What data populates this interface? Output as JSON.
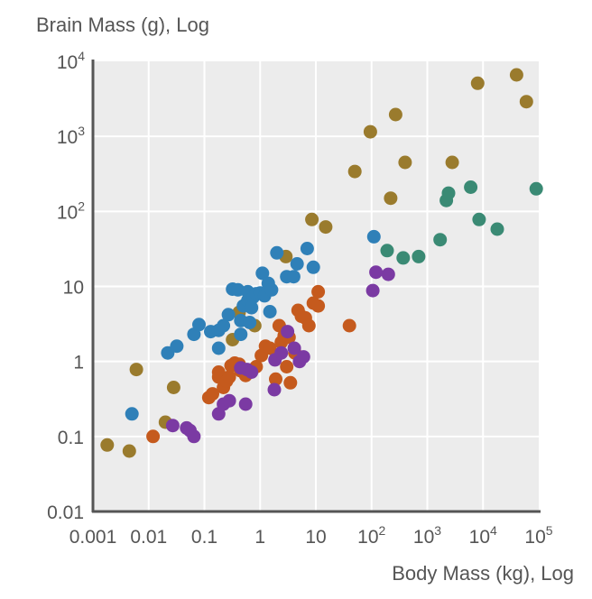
{
  "chart_data": {
    "type": "scatter",
    "title": "",
    "xlabel": "Body Mass (kg), Log",
    "ylabel": "Brain Mass (g), Log",
    "xscale": "log",
    "yscale": "log",
    "xlim": [
      0.001,
      100000
    ],
    "ylim": [
      0.01,
      10000
    ],
    "grid": true,
    "legend": "none",
    "x_ticks": [
      {
        "value": 0.001,
        "base": "0.001",
        "exp": ""
      },
      {
        "value": 0.01,
        "base": "0.01",
        "exp": ""
      },
      {
        "value": 0.1,
        "base": "0.1",
        "exp": ""
      },
      {
        "value": 1,
        "base": "1",
        "exp": ""
      },
      {
        "value": 10,
        "base": "10",
        "exp": ""
      },
      {
        "value": 100,
        "base": "10",
        "exp": "2"
      },
      {
        "value": 1000,
        "base": "10",
        "exp": "3"
      },
      {
        "value": 10000,
        "base": "10",
        "exp": "4"
      },
      {
        "value": 100000,
        "base": "10",
        "exp": "5"
      }
    ],
    "y_ticks": [
      {
        "value": 0.01,
        "base": "0.01",
        "exp": ""
      },
      {
        "value": 0.1,
        "base": "0.1",
        "exp": ""
      },
      {
        "value": 1,
        "base": "1",
        "exp": ""
      },
      {
        "value": 10,
        "base": "10",
        "exp": ""
      },
      {
        "value": 100,
        "base": "10",
        "exp": "2"
      },
      {
        "value": 1000,
        "base": "10",
        "exp": "3"
      },
      {
        "value": 10000,
        "base": "10",
        "exp": "4"
      }
    ],
    "series": [
      {
        "color": "#9a7b2d",
        "points": [
          [
            0.0018,
            0.077
          ],
          [
            0.0045,
            0.064
          ],
          [
            0.006,
            0.78
          ],
          [
            0.02,
            0.155
          ],
          [
            0.028,
            0.45
          ],
          [
            0.42,
            4.5
          ],
          [
            0.32,
            1.95
          ],
          [
            0.8,
            3.0
          ],
          [
            2.9,
            25
          ],
          [
            8.5,
            78
          ],
          [
            15,
            62
          ],
          [
            50,
            340
          ],
          [
            95,
            1150
          ],
          [
            220,
            150
          ],
          [
            270,
            1950
          ],
          [
            400,
            450
          ],
          [
            2800,
            450
          ],
          [
            8000,
            5100
          ],
          [
            40000,
            6600
          ],
          [
            60000,
            2900
          ]
        ]
      },
      {
        "color": "#2f80b8",
        "points": [
          [
            0.005,
            0.2
          ],
          [
            0.022,
            1.3
          ],
          [
            0.032,
            1.6
          ],
          [
            0.065,
            2.3
          ],
          [
            0.08,
            3.1
          ],
          [
            0.13,
            2.5
          ],
          [
            0.18,
            1.5
          ],
          [
            0.18,
            2.6
          ],
          [
            0.22,
            3.0
          ],
          [
            0.27,
            4.2
          ],
          [
            0.32,
            9.2
          ],
          [
            0.4,
            9.0
          ],
          [
            0.45,
            3.5
          ],
          [
            0.5,
            5.5
          ],
          [
            0.6,
            8.5
          ],
          [
            0.45,
            2.3
          ],
          [
            0.6,
            6.5
          ],
          [
            0.65,
            3.3
          ],
          [
            0.7,
            5.2
          ],
          [
            0.75,
            7.2
          ],
          [
            0.85,
            8.0
          ],
          [
            1.0,
            8.2
          ],
          [
            1.1,
            15
          ],
          [
            1.2,
            7.5
          ],
          [
            1.4,
            11
          ],
          [
            1.5,
            4.6
          ],
          [
            1.6,
            9.0
          ],
          [
            2.0,
            28
          ],
          [
            3.0,
            13.5
          ],
          [
            4.0,
            13.5
          ],
          [
            4.6,
            20
          ],
          [
            7.0,
            32
          ],
          [
            9.0,
            18
          ],
          [
            110,
            46
          ]
        ]
      },
      {
        "color": "#c55a1d",
        "points": [
          [
            0.012,
            0.1
          ],
          [
            0.12,
            0.33
          ],
          [
            0.14,
            0.37
          ],
          [
            0.18,
            0.62
          ],
          [
            0.18,
            0.72
          ],
          [
            0.22,
            0.45
          ],
          [
            0.25,
            0.55
          ],
          [
            0.28,
            0.62
          ],
          [
            0.3,
            0.88
          ],
          [
            0.35,
            0.95
          ],
          [
            0.42,
            0.92
          ],
          [
            0.45,
            0.75
          ],
          [
            0.55,
            0.65
          ],
          [
            0.85,
            0.85
          ],
          [
            1.05,
            1.2
          ],
          [
            1.25,
            1.6
          ],
          [
            1.5,
            1.5
          ],
          [
            1.9,
            0.58
          ],
          [
            2.0,
            1.2
          ],
          [
            2.2,
            3.0
          ],
          [
            2.4,
            1.8
          ],
          [
            2.7,
            2.2
          ],
          [
            3.0,
            0.85
          ],
          [
            3.3,
            2.1
          ],
          [
            3.5,
            0.52
          ],
          [
            4.2,
            1.3
          ],
          [
            4.8,
            4.8
          ],
          [
            5.5,
            4.0
          ],
          [
            6.5,
            3.8
          ],
          [
            7.5,
            3.0
          ],
          [
            9.0,
            6.0
          ],
          [
            11,
            5.5
          ],
          [
            11,
            8.5
          ],
          [
            40,
            3.0
          ]
        ]
      },
      {
        "color": "#7b3aa3",
        "points": [
          [
            0.027,
            0.14
          ],
          [
            0.048,
            0.13
          ],
          [
            0.055,
            0.12
          ],
          [
            0.065,
            0.1
          ],
          [
            0.18,
            0.2
          ],
          [
            0.22,
            0.27
          ],
          [
            0.28,
            0.3
          ],
          [
            0.45,
            0.82
          ],
          [
            0.55,
            0.27
          ],
          [
            0.58,
            0.78
          ],
          [
            0.7,
            0.72
          ],
          [
            1.8,
            0.42
          ],
          [
            1.85,
            1.05
          ],
          [
            2.4,
            1.3
          ],
          [
            3.1,
            2.5
          ],
          [
            4.1,
            1.5
          ],
          [
            5.1,
            1.0
          ],
          [
            6.0,
            1.15
          ],
          [
            105,
            8.8
          ],
          [
            120,
            15.5
          ],
          [
            200,
            14.5
          ]
        ]
      },
      {
        "color": "#3a8a74",
        "points": [
          [
            190,
            30
          ],
          [
            370,
            24
          ],
          [
            700,
            25
          ],
          [
            1700,
            42
          ],
          [
            2200,
            140
          ],
          [
            2400,
            175
          ],
          [
            6000,
            210
          ],
          [
            8500,
            78
          ],
          [
            18000,
            58
          ],
          [
            90000,
            200
          ]
        ]
      }
    ]
  }
}
